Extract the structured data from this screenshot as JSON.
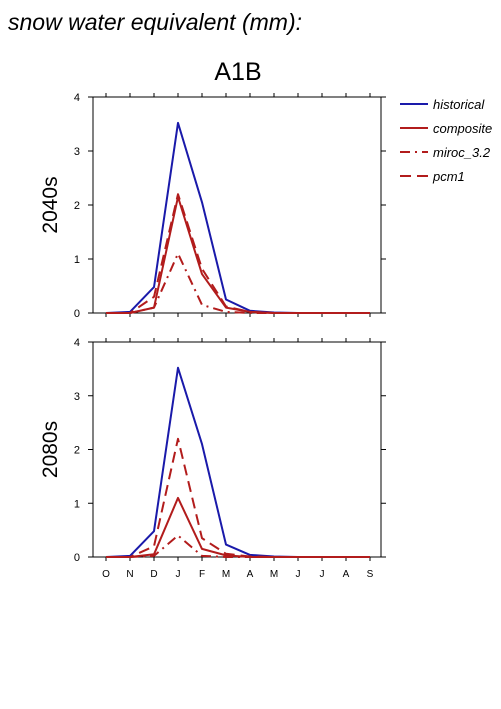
{
  "figure_title": "snow water equivalent (mm):",
  "scenario": "A1B",
  "colors": {
    "historical": "#1a1aaa",
    "composite": "#b21c1c",
    "miroc_3.2": "#b21c1c",
    "pcm1": "#b21c1c"
  },
  "legend": [
    {
      "name": "historical",
      "style": "solid"
    },
    {
      "name": "composite",
      "style": "solid"
    },
    {
      "name": "miroc_3.2",
      "style": "dashdot"
    },
    {
      "name": "pcm1",
      "style": "dash"
    }
  ],
  "chart_data": [
    {
      "type": "line",
      "panel_label": "2040s",
      "categories": [
        "O",
        "N",
        "D",
        "J",
        "F",
        "M",
        "A",
        "M",
        "J",
        "J",
        "A",
        "S"
      ],
      "ylim": [
        0,
        4
      ],
      "yticks": [
        0,
        1,
        2,
        3,
        4
      ],
      "series": [
        {
          "name": "historical",
          "values": [
            0,
            0.02,
            0.48,
            3.52,
            2.05,
            0.25,
            0.04,
            0.01,
            0,
            0,
            0,
            0
          ]
        },
        {
          "name": "composite",
          "values": [
            0,
            0,
            0.1,
            2.15,
            0.72,
            0.1,
            0.02,
            0,
            0,
            0,
            0,
            0
          ]
        },
        {
          "name": "miroc_3.2",
          "values": [
            0,
            0,
            0.1,
            1.1,
            0.15,
            0.02,
            0,
            0,
            0,
            0,
            0,
            0
          ]
        },
        {
          "name": "pcm1",
          "values": [
            0,
            0,
            0.3,
            2.2,
            0.82,
            0.12,
            0.02,
            0,
            0,
            0,
            0,
            0
          ]
        }
      ]
    },
    {
      "type": "line",
      "panel_label": "2080s",
      "categories": [
        "O",
        "N",
        "D",
        "J",
        "F",
        "M",
        "A",
        "M",
        "J",
        "J",
        "A",
        "S"
      ],
      "ylim": [
        0,
        4
      ],
      "yticks": [
        0,
        1,
        2,
        3,
        4
      ],
      "series": [
        {
          "name": "historical",
          "values": [
            0,
            0.02,
            0.48,
            3.52,
            2.1,
            0.23,
            0.04,
            0.01,
            0,
            0,
            0,
            0
          ]
        },
        {
          "name": "composite",
          "values": [
            0,
            0,
            0.05,
            1.1,
            0.15,
            0.03,
            0,
            0,
            0,
            0,
            0,
            0
          ]
        },
        {
          "name": "miroc_3.2",
          "values": [
            0,
            0,
            0.02,
            0.4,
            0.02,
            0,
            0,
            0,
            0,
            0,
            0,
            0
          ]
        },
        {
          "name": "pcm1",
          "values": [
            0,
            0,
            0.2,
            2.2,
            0.35,
            0.06,
            0.01,
            0,
            0,
            0,
            0,
            0
          ]
        }
      ]
    }
  ]
}
